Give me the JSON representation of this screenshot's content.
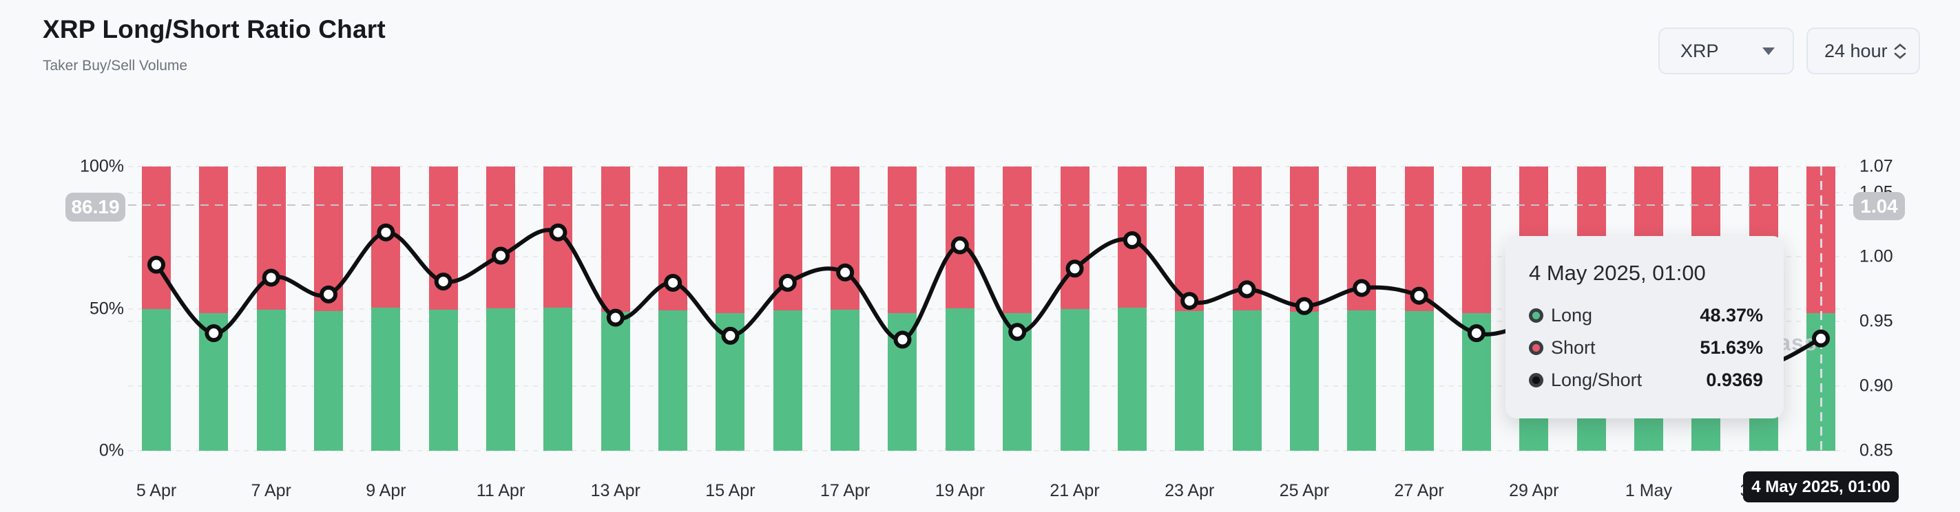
{
  "header": {
    "title": "XRP Long/Short Ratio Chart",
    "subtitle": "Taker Buy/Sell Volume"
  },
  "controls": {
    "symbol": "XRP",
    "interval": "24 hour"
  },
  "colors": {
    "long": "#53bf86",
    "short": "#e6596a",
    "line": "#0e0f10",
    "background": "#f8f9fa",
    "tooltip_bg": "#eef0f4",
    "badge_gray": "#c2c5c9",
    "badge_black": "#141519",
    "watermark": "#c8cbd0"
  },
  "watermark_text": "coinglass",
  "left_axis": {
    "tick_labels": [
      "100%",
      "50%",
      "0%"
    ],
    "tick_values": [
      100,
      50,
      0
    ]
  },
  "right_axis": {
    "tick_labels": [
      "1.07",
      "1.05",
      "1.00",
      "0.95",
      "0.90",
      "0.85"
    ],
    "tick_values": [
      1.07,
      1.05,
      1.0,
      0.95,
      0.9,
      0.85
    ]
  },
  "crosshair": {
    "left_badge": "86.19",
    "right_badge": "1.04",
    "ratio_value": 1.04,
    "hovered_index": 29,
    "x_badge": "4 May 2025, 01:00"
  },
  "tooltip": {
    "title": "4 May 2025, 01:00",
    "rows": [
      {
        "label": "Long",
        "value": "48.37%",
        "color": "long"
      },
      {
        "label": "Short",
        "value": "51.63%",
        "color": "short"
      },
      {
        "label": "Long/Short",
        "value": "0.9369",
        "color": "line"
      }
    ]
  },
  "chart_data": {
    "type": "bar+line",
    "title": "XRP Long/Short Ratio Chart",
    "subtitle": "Taker Buy/Sell Volume",
    "categories": [
      "5 Apr",
      "6 Apr",
      "7 Apr",
      "8 Apr",
      "9 Apr",
      "10 Apr",
      "11 Apr",
      "12 Apr",
      "13 Apr",
      "14 Apr",
      "15 Apr",
      "16 Apr",
      "17 Apr",
      "18 Apr",
      "19 Apr",
      "20 Apr",
      "21 Apr",
      "22 Apr",
      "23 Apr",
      "24 Apr",
      "25 Apr",
      "26 Apr",
      "27 Apr",
      "28 Apr",
      "29 Apr",
      "30 Apr",
      "1 May",
      "2 May",
      "3 May",
      "4 May"
    ],
    "x_tick_labels": [
      "5 Apr",
      "7 Apr",
      "9 Apr",
      "11 Apr",
      "13 Apr",
      "15 Apr",
      "17 Apr",
      "19 Apr",
      "21 Apr",
      "23 Apr",
      "25 Apr",
      "27 Apr",
      "29 Apr",
      "1 May",
      "3 May"
    ],
    "series": [
      {
        "name": "Long",
        "type": "bar",
        "unit": "%",
        "axis": "left",
        "values": [
          49.85,
          48.48,
          49.6,
          49.26,
          50.47,
          49.52,
          50.02,
          50.47,
          48.8,
          49.49,
          48.43,
          49.49,
          49.7,
          48.35,
          50.22,
          48.51,
          49.77,
          50.32,
          49.14,
          49.37,
          49.03,
          49.39,
          49.24,
          48.48,
          48.67,
          48.77,
          48.45,
          48.13,
          47.81,
          48.37
        ]
      },
      {
        "name": "Short",
        "type": "bar",
        "unit": "%",
        "axis": "left",
        "values": [
          50.15,
          51.52,
          50.4,
          50.74,
          49.53,
          50.48,
          49.98,
          49.53,
          51.2,
          50.51,
          51.57,
          50.51,
          50.3,
          51.65,
          49.78,
          51.49,
          50.23,
          49.68,
          50.86,
          50.63,
          50.97,
          50.61,
          50.76,
          51.52,
          51.33,
          51.23,
          51.55,
          51.87,
          52.19,
          51.63
        ]
      },
      {
        "name": "Long/Short",
        "type": "line",
        "axis": "right",
        "values": [
          0.994,
          0.941,
          0.984,
          0.971,
          1.019,
          0.981,
          1.001,
          1.019,
          0.953,
          0.98,
          0.939,
          0.98,
          0.988,
          0.936,
          1.009,
          0.942,
          0.991,
          1.013,
          0.966,
          0.975,
          0.962,
          0.976,
          0.97,
          0.941,
          0.948,
          0.952,
          0.94,
          0.928,
          0.916,
          0.9369
        ]
      }
    ],
    "left_ylim": [
      0,
      100
    ],
    "right_ylim": [
      0.85,
      1.07
    ],
    "grid": "dashed-horizontal",
    "legend": "none",
    "stacked": true,
    "hovered_point": {
      "category": "4 May",
      "time": "01:00",
      "long": "48.37%",
      "short": "51.63%",
      "ratio": "0.9369"
    }
  }
}
